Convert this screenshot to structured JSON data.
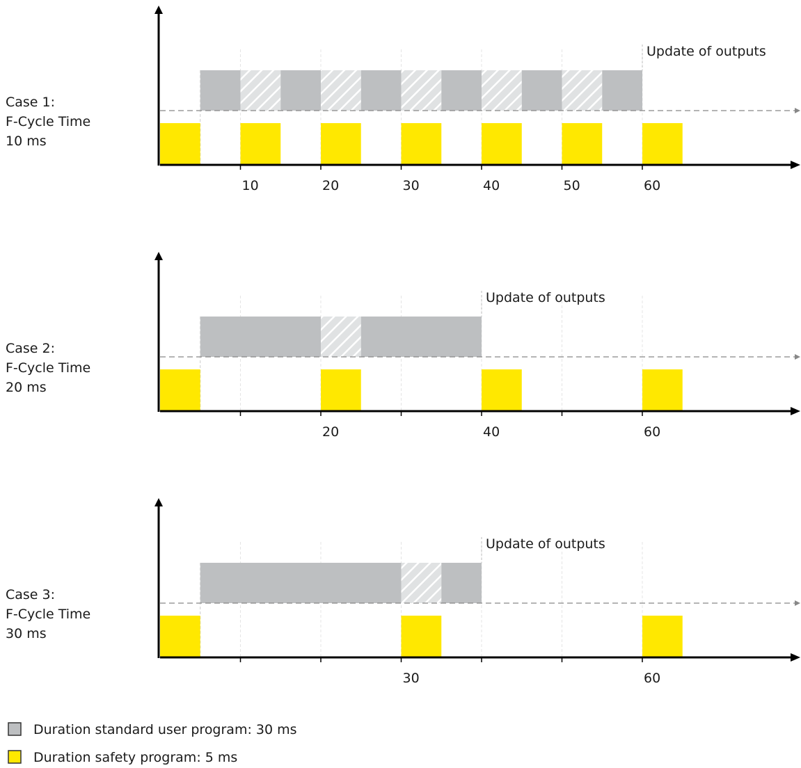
{
  "colors": {
    "standard": "#bdbfc1",
    "safety": "#ffe800",
    "hatch_bg": "#e0e2e3",
    "hatch_line": "#ffffff",
    "axis": "#000000",
    "dashed": "#888888"
  },
  "cases": [
    {
      "label_lines": [
        "Case 1:",
        "F-Cycle Time",
        "10 ms"
      ],
      "update_label": "Update of outputs",
      "update_at": 60,
      "tick_labels": [
        "10",
        "20",
        "30",
        "40",
        "50",
        "60"
      ],
      "tick_values": [
        10,
        20,
        30,
        40,
        50,
        60
      ],
      "safety_starts": [
        0,
        10,
        20,
        30,
        40,
        50,
        60
      ],
      "standard_segments": [
        {
          "from": 5,
          "to": 10,
          "kind": "solid"
        },
        {
          "from": 10,
          "to": 15,
          "kind": "hatch"
        },
        {
          "from": 15,
          "to": 20,
          "kind": "solid"
        },
        {
          "from": 20,
          "to": 25,
          "kind": "hatch"
        },
        {
          "from": 25,
          "to": 30,
          "kind": "solid"
        },
        {
          "from": 30,
          "to": 35,
          "kind": "hatch"
        },
        {
          "from": 35,
          "to": 40,
          "kind": "solid"
        },
        {
          "from": 40,
          "to": 45,
          "kind": "hatch"
        },
        {
          "from": 45,
          "to": 50,
          "kind": "solid"
        },
        {
          "from": 50,
          "to": 55,
          "kind": "hatch"
        },
        {
          "from": 55,
          "to": 60,
          "kind": "solid"
        }
      ]
    },
    {
      "label_lines": [
        "Case 2:",
        "F-Cycle Time",
        "20 ms"
      ],
      "update_label": "Update of outputs",
      "update_at": 40,
      "tick_labels": [
        "20",
        "40",
        "60"
      ],
      "tick_values": [
        20,
        40,
        60
      ],
      "safety_starts": [
        0,
        20,
        40,
        60
      ],
      "standard_segments": [
        {
          "from": 5,
          "to": 20,
          "kind": "solid"
        },
        {
          "from": 20,
          "to": 25,
          "kind": "hatch"
        },
        {
          "from": 25,
          "to": 40,
          "kind": "solid"
        }
      ]
    },
    {
      "label_lines": [
        "Case 3:",
        "F-Cycle Time",
        "30 ms"
      ],
      "update_label": "Update of outputs",
      "update_at": 40,
      "tick_labels": [
        "30",
        "60"
      ],
      "tick_values": [
        30,
        60
      ],
      "safety_starts": [
        0,
        30,
        60
      ],
      "standard_segments": [
        {
          "from": 5,
          "to": 30,
          "kind": "solid"
        },
        {
          "from": 30,
          "to": 35,
          "kind": "hatch"
        },
        {
          "from": 35,
          "to": 40,
          "kind": "solid"
        }
      ]
    }
  ],
  "time_unit_ms": 5,
  "legend": [
    {
      "label": "Duration standard user program: 30 ms",
      "swatch": "standard"
    },
    {
      "label": "Duration safety program: 5 ms",
      "swatch": "safety"
    }
  ]
}
